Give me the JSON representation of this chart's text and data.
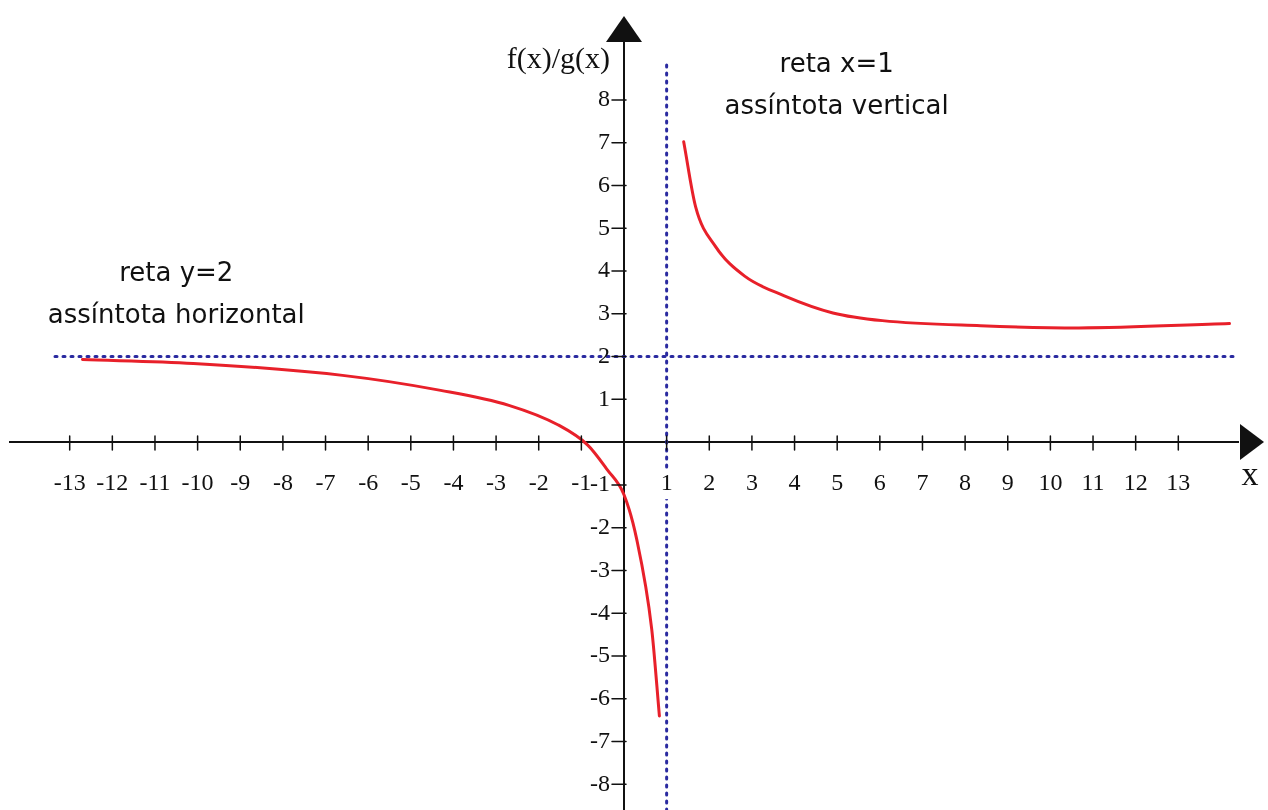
{
  "chart_data": {
    "type": "line",
    "xlabel": "x",
    "ylabel": "f(x)/g(x)",
    "xlim": [
      -14.4,
      14.4
    ],
    "ylim": [
      -8.6,
      9.4
    ],
    "xticks": [
      -13,
      -12,
      -11,
      -10,
      -9,
      -8,
      -7,
      -6,
      -5,
      -4,
      -3,
      -2,
      -1,
      1,
      2,
      3,
      4,
      5,
      6,
      7,
      8,
      9,
      10,
      11,
      12,
      13
    ],
    "yticks": [
      -8,
      -7,
      -6,
      -5,
      -4,
      -3,
      -2,
      -1,
      1,
      2,
      3,
      4,
      5,
      6,
      7,
      8
    ],
    "series": [
      {
        "color": "#e8202a",
        "x": [
          -12.7,
          -10.1,
          -6.6,
          -4.3,
          -2.7,
          -1.54,
          -0.85,
          -0.39,
          0,
          0.3,
          0.65,
          0.83
        ],
        "values": [
          1.93,
          1.84,
          1.56,
          1.21,
          0.86,
          0.4,
          -0.07,
          -0.65,
          -1.23,
          -2.28,
          -4.37,
          -6.4
        ]
      },
      {
        "color": "#e8202a",
        "x": [
          1.4,
          1.68,
          2.14,
          2.83,
          3.76,
          4.9,
          6.06,
          8.36,
          10.67,
          14.2
        ],
        "values": [
          7.02,
          5.5,
          4.58,
          3.88,
          3.42,
          3.02,
          2.84,
          2.72,
          2.67,
          2.77
        ]
      }
    ],
    "ref_lines": [
      {
        "axis": "x",
        "value": 1,
        "label": "reta x=1\nassíntota vertical",
        "color": "#2a2aa0",
        "line_style": "dotted"
      },
      {
        "axis": "y",
        "value": 2,
        "label": "reta y=2\nassíntota horizontal",
        "color": "#2a2aa0",
        "line_style": "dotted"
      }
    ],
    "grid": false,
    "legend": false,
    "marker": "none",
    "line_style": "solid"
  }
}
